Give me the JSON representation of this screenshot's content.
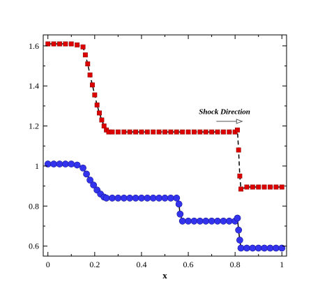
{
  "chart_data": {
    "type": "scatter",
    "xlabel": "x",
    "ylabel": "",
    "xlim": [
      -0.02,
      1.02
    ],
    "ylim": [
      0.55,
      1.655
    ],
    "xticks": [
      0,
      0.2,
      0.4,
      0.6,
      0.8,
      1
    ],
    "xtick_labels": [
      "0",
      "0.2",
      "0.4",
      "0.6",
      "0.8",
      "1"
    ],
    "yticks": [
      0.6,
      0.8,
      1.0,
      1.2,
      1.4,
      1.6
    ],
    "ytick_labels": [
      "0.6",
      "0.8",
      "1",
      "1.2",
      "1.4",
      "1.6"
    ],
    "grid": false,
    "annotation": {
      "text": "Shock Direction",
      "x": 0.755,
      "y": 1.26,
      "arrow_from": [
        0.72,
        1.223
      ],
      "arrow_to": [
        0.83,
        1.223
      ]
    },
    "series": [
      {
        "marker": "square",
        "color": "#dd0000",
        "line": "dashed",
        "line_color": "#000000",
        "x": [
          0,
          0.025,
          0.05,
          0.075,
          0.1,
          0.125,
          0.15,
          0.16,
          0.17,
          0.18,
          0.19,
          0.2,
          0.21,
          0.22,
          0.23,
          0.24,
          0.25,
          0.26,
          0.275,
          0.3,
          0.325,
          0.35,
          0.375,
          0.4,
          0.425,
          0.45,
          0.475,
          0.5,
          0.525,
          0.55,
          0.575,
          0.6,
          0.625,
          0.65,
          0.675,
          0.7,
          0.725,
          0.75,
          0.775,
          0.8,
          0.81,
          0.815,
          0.82,
          0.825,
          0.85,
          0.875,
          0.9,
          0.925,
          0.95,
          0.975,
          1.0
        ],
        "y": [
          1.61,
          1.61,
          1.61,
          1.61,
          1.61,
          1.605,
          1.595,
          1.555,
          1.51,
          1.455,
          1.405,
          1.355,
          1.305,
          1.265,
          1.23,
          1.2,
          1.18,
          1.17,
          1.17,
          1.17,
          1.17,
          1.17,
          1.17,
          1.17,
          1.17,
          1.17,
          1.17,
          1.17,
          1.17,
          1.17,
          1.17,
          1.17,
          1.17,
          1.17,
          1.17,
          1.17,
          1.17,
          1.17,
          1.17,
          1.17,
          1.18,
          1.08,
          0.95,
          0.885,
          0.895,
          0.895,
          0.895,
          0.895,
          0.895,
          0.895,
          0.895
        ]
      },
      {
        "marker": "circle",
        "color": "#3333ee",
        "line": "solid",
        "line_color": "#000000",
        "x": [
          0,
          0.025,
          0.05,
          0.075,
          0.1,
          0.125,
          0.15,
          0.165,
          0.18,
          0.195,
          0.21,
          0.225,
          0.24,
          0.25,
          0.275,
          0.3,
          0.325,
          0.35,
          0.375,
          0.4,
          0.425,
          0.45,
          0.475,
          0.5,
          0.525,
          0.55,
          0.56,
          0.565,
          0.575,
          0.6,
          0.625,
          0.65,
          0.675,
          0.7,
          0.725,
          0.75,
          0.775,
          0.8,
          0.81,
          0.815,
          0.82,
          0.825,
          0.85,
          0.875,
          0.9,
          0.925,
          0.95,
          0.975,
          1.0
        ],
        "y": [
          1.01,
          1.01,
          1.01,
          1.01,
          1.01,
          1.005,
          0.99,
          0.96,
          0.93,
          0.905,
          0.88,
          0.86,
          0.845,
          0.84,
          0.84,
          0.84,
          0.84,
          0.84,
          0.84,
          0.84,
          0.84,
          0.84,
          0.84,
          0.84,
          0.84,
          0.84,
          0.81,
          0.76,
          0.725,
          0.725,
          0.725,
          0.725,
          0.725,
          0.725,
          0.725,
          0.725,
          0.725,
          0.725,
          0.74,
          0.68,
          0.63,
          0.59,
          0.59,
          0.59,
          0.59,
          0.59,
          0.59,
          0.59,
          0.59
        ]
      }
    ]
  }
}
